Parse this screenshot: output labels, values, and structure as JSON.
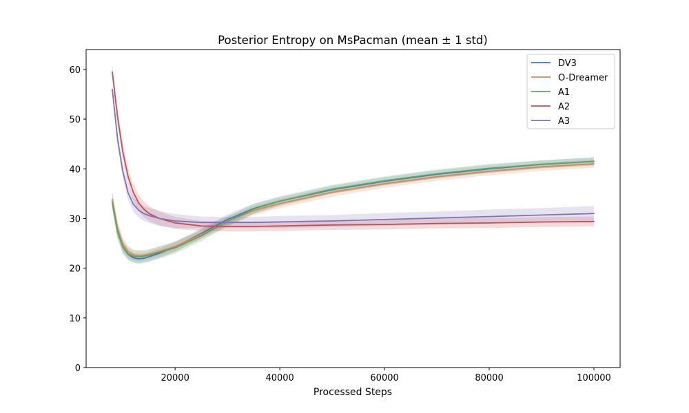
{
  "chart_data": {
    "type": "line",
    "title": "Posterior Entropy on MsPacman (mean ± 1 std)",
    "xlabel": "Processed Steps",
    "ylabel": "",
    "xlim": [
      3000,
      105000
    ],
    "ylim": [
      0,
      64
    ],
    "xticks": [
      20000,
      40000,
      60000,
      80000,
      100000
    ],
    "xtick_labels": [
      "20000",
      "40000",
      "60000",
      "80000",
      "100000"
    ],
    "yticks": [
      0,
      10,
      20,
      30,
      40,
      50,
      60
    ],
    "ytick_labels": [
      "0",
      "10",
      "20",
      "30",
      "40",
      "50",
      "60"
    ],
    "grid": false,
    "legend_position": "top-right",
    "x": [
      8000,
      9000,
      10000,
      11000,
      12000,
      13000,
      14000,
      15000,
      17000,
      20000,
      25000,
      30000,
      35000,
      40000,
      50000,
      60000,
      70000,
      80000,
      90000,
      100000
    ],
    "series": [
      {
        "name": "DV3",
        "color": "#4c72b0",
        "values": [
          33.5,
          27.5,
          24.3,
          22.8,
          22.1,
          21.9,
          22.0,
          22.3,
          23.0,
          24.3,
          27.0,
          29.8,
          32.0,
          33.5,
          35.8,
          37.5,
          38.9,
          40.0,
          40.9,
          41.5
        ],
        "std": [
          1.5,
          1.4,
          1.2,
          1.0,
          1.0,
          1.0,
          1.0,
          1.0,
          1.0,
          1.0,
          1.0,
          1.0,
          1.0,
          0.8,
          0.8,
          0.8,
          0.8,
          0.8,
          0.8,
          0.8
        ]
      },
      {
        "name": "O-Dreamer",
        "color": "#dd8452",
        "values": [
          33.8,
          28.0,
          24.8,
          23.3,
          22.7,
          22.5,
          22.6,
          22.8,
          23.4,
          24.4,
          26.8,
          29.4,
          31.6,
          33.0,
          35.3,
          37.0,
          38.4,
          39.5,
          40.4,
          41.0
        ],
        "std": [
          1.8,
          1.6,
          1.4,
          1.2,
          1.1,
          1.1,
          1.0,
          1.0,
          1.0,
          1.0,
          1.0,
          1.0,
          0.9,
          0.9,
          0.9,
          0.8,
          0.8,
          0.8,
          0.8,
          0.8
        ]
      },
      {
        "name": "A1",
        "color": "#55a868",
        "values": [
          33.2,
          27.3,
          24.3,
          22.9,
          22.4,
          22.3,
          22.4,
          22.6,
          23.2,
          24.1,
          26.5,
          29.4,
          31.9,
          33.5,
          35.9,
          37.6,
          39.0,
          40.1,
          40.9,
          41.5
        ],
        "std": [
          1.5,
          1.5,
          1.4,
          1.3,
          1.2,
          1.2,
          1.2,
          1.2,
          1.2,
          1.2,
          1.1,
          1.0,
          1.0,
          1.0,
          0.9,
          0.9,
          0.9,
          0.9,
          0.8,
          0.8
        ]
      },
      {
        "name": "A2",
        "color": "#c44e52",
        "values": [
          59.5,
          50.5,
          43.5,
          38.5,
          35.3,
          33.2,
          31.9,
          31.0,
          30.0,
          29.1,
          28.5,
          28.4,
          28.4,
          28.5,
          28.7,
          28.8,
          29.0,
          29.1,
          29.3,
          29.4
        ],
        "std": [
          1.5,
          1.6,
          1.7,
          1.7,
          1.7,
          1.7,
          1.6,
          1.5,
          1.4,
          1.2,
          1.0,
          1.0,
          1.0,
          1.0,
          1.0,
          1.0,
          1.0,
          1.0,
          1.0,
          1.0
        ]
      },
      {
        "name": "A3",
        "color": "#8172b3",
        "values": [
          56.0,
          46.0,
          39.5,
          35.2,
          32.9,
          31.7,
          31.0,
          30.6,
          30.0,
          29.5,
          29.2,
          29.2,
          29.2,
          29.3,
          29.5,
          29.8,
          30.1,
          30.4,
          30.7,
          31.0
        ],
        "std": [
          1.0,
          1.2,
          1.4,
          1.5,
          1.5,
          1.5,
          1.5,
          1.5,
          1.5,
          1.4,
          1.2,
          1.1,
          1.1,
          1.2,
          1.2,
          1.3,
          1.3,
          1.4,
          1.4,
          1.5
        ]
      }
    ]
  }
}
